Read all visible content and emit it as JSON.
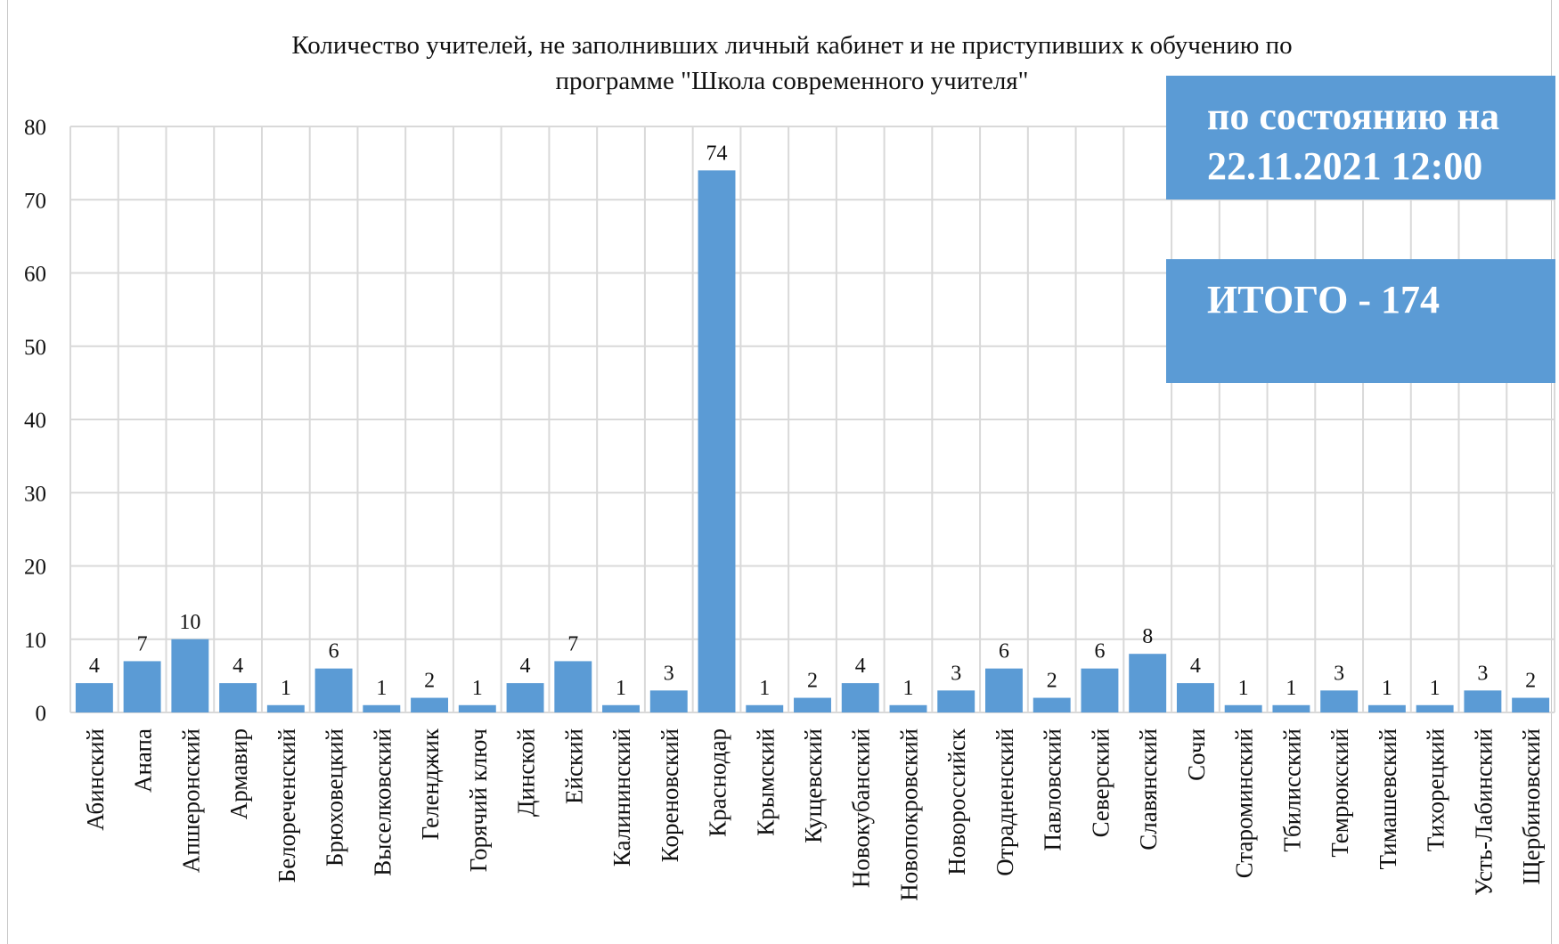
{
  "chart_data": {
    "type": "bar",
    "title": [
      "Количество учителей, не заполнивших личный кабинет и не приступивших к обучению по",
      "программе \"Школа современного учителя\""
    ],
    "categories": [
      "Абинский",
      "Анапа",
      "Апшеронский",
      "Армавир",
      "Белореченский",
      "Брюховецкий",
      "Выселковский",
      "Геленджик",
      "Горячий ключ",
      "Динской",
      "Ейский",
      "Калининский",
      "Кореновский",
      "Краснодар",
      "Крымский",
      "Кущевский",
      "Новокубанский",
      "Новопокровский",
      "Новороссийск",
      "Отрадненский",
      "Павловский",
      "Северский",
      "Славянский",
      "Сочи",
      "Староминский",
      "Тбилисский",
      "Темрюкский",
      "Тимашевский",
      "Тихорецкий",
      "Усть-Лабинский",
      "Щербиновский"
    ],
    "values": [
      4,
      7,
      10,
      4,
      1,
      6,
      1,
      2,
      1,
      4,
      7,
      1,
      3,
      74,
      1,
      2,
      4,
      1,
      3,
      6,
      2,
      6,
      8,
      4,
      1,
      1,
      3,
      1,
      1,
      3,
      2
    ],
    "ylim": [
      0,
      80
    ],
    "yticks": [
      0,
      10,
      20,
      30,
      40,
      50,
      60,
      70,
      80
    ],
    "grid": true,
    "bar_color": "#5b9bd5",
    "grid_color": "#d9d9d9"
  },
  "notes": {
    "date_line1": "по состоянию на",
    "date_line2": "22.11.2021 12:00",
    "total": "ИТОГО - 174",
    "box_color": "#5b9bd5"
  }
}
